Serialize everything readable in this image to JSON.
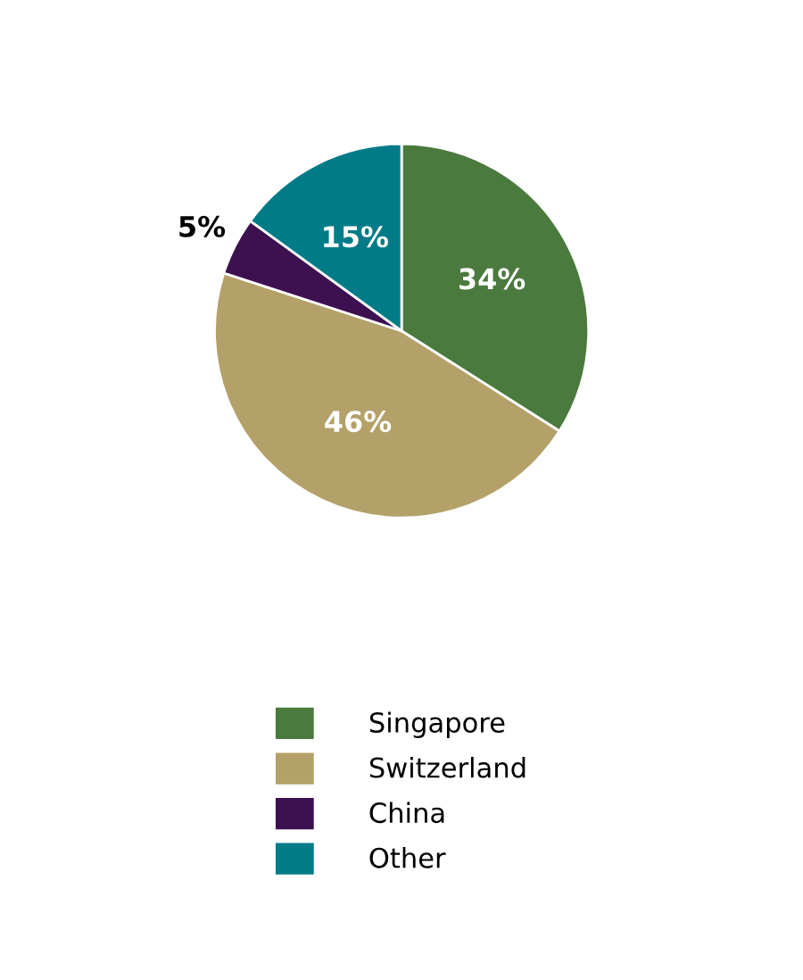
{
  "chart_data": {
    "type": "pie",
    "categories": [
      "Singapore",
      "Switzerland",
      "China",
      "Other"
    ],
    "values": [
      34,
      46,
      5,
      15
    ],
    "colors": [
      "#4a7a3d",
      "#b3a169",
      "#3d1150",
      "#007b87"
    ],
    "value_labels": [
      "34%",
      "46%",
      "5%",
      "15%"
    ],
    "legend": "bottom"
  }
}
